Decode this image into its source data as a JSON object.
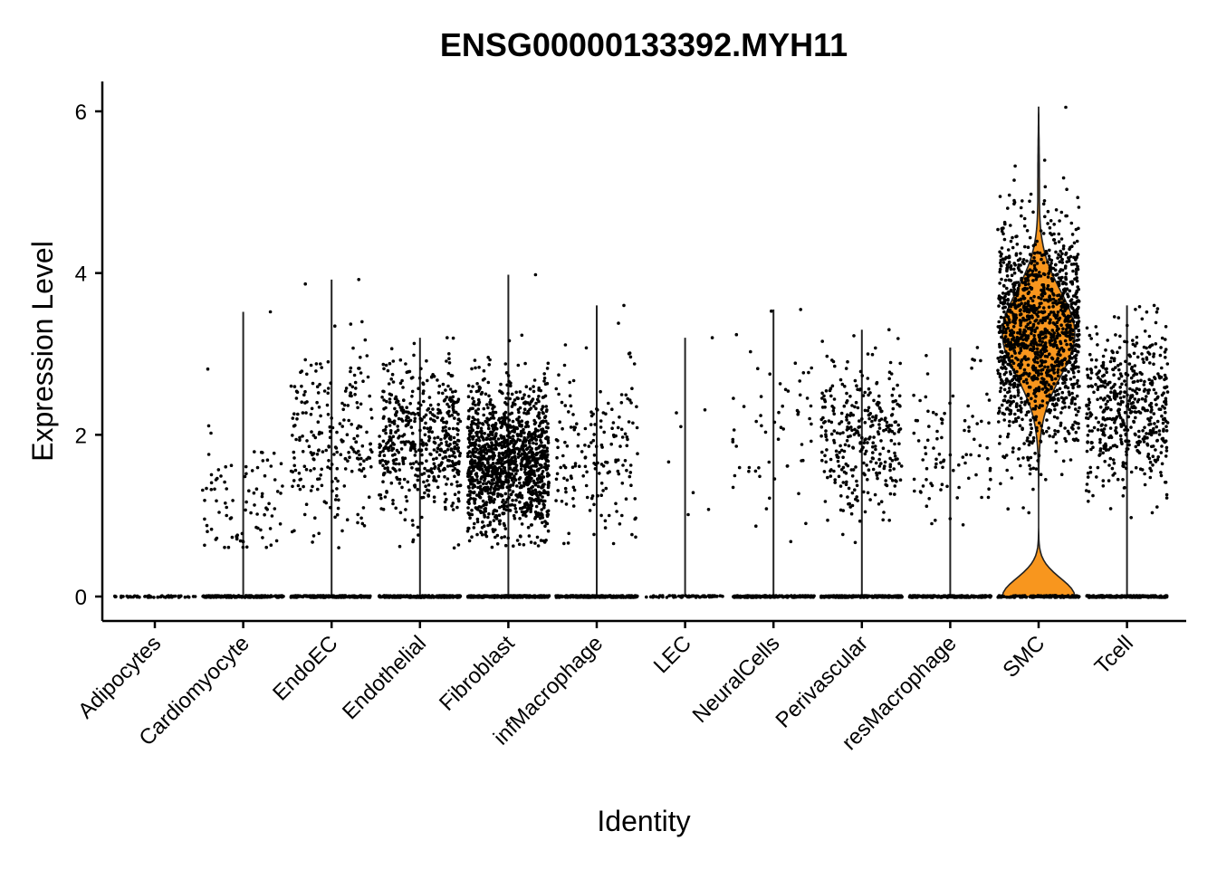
{
  "chart_data": {
    "type": "violin",
    "title": "ENSG00000133392.MYH11",
    "xlabel": "Identity",
    "ylabel": "Expression Level",
    "ylim": [
      -0.3,
      6.35
    ],
    "yticks": [
      0,
      2,
      4,
      6
    ],
    "ytick_labels": [
      "0",
      "2",
      "4",
      "6"
    ],
    "grid": false,
    "legend": "none",
    "highlight_color": "#F8961E",
    "point_color": "#000000",
    "categories": [
      "Adipocytes",
      "Cardiomyocyte",
      "EndoEC",
      "Endothelial",
      "Fibroblast",
      "infMacrophage",
      "LEC",
      "NeuralCells",
      "Perivascular",
      "resMacrophage",
      "SMC",
      "Tcell"
    ],
    "groups": [
      {
        "name": "Adipocytes",
        "max": 0.0,
        "n_zero": 60,
        "n_expr": 0,
        "expr_center": 0,
        "expr_spread": 0,
        "violin": false
      },
      {
        "name": "Cardiomyocyte",
        "max": 3.52,
        "n_zero": 200,
        "n_expr": 90,
        "expr_center": 1.1,
        "expr_spread": 0.45,
        "violin": false
      },
      {
        "name": "EndoEC",
        "max": 3.92,
        "n_zero": 220,
        "n_expr": 230,
        "expr_center": 1.9,
        "expr_spread": 0.6,
        "violin": false
      },
      {
        "name": "Endothelial",
        "max": 3.2,
        "n_zero": 260,
        "n_expr": 520,
        "expr_center": 1.95,
        "expr_spread": 0.45,
        "violin": false
      },
      {
        "name": "Fibroblast",
        "max": 3.98,
        "n_zero": 300,
        "n_expr": 1300,
        "expr_center": 1.7,
        "expr_spread": 0.45,
        "violin": false
      },
      {
        "name": "infMacrophage",
        "max": 3.6,
        "n_zero": 260,
        "n_expr": 170,
        "expr_center": 1.8,
        "expr_spread": 0.55,
        "violin": false
      },
      {
        "name": "LEC",
        "max": 3.2,
        "n_zero": 70,
        "n_expr": 7,
        "expr_center": 2.0,
        "expr_spread": 0.8,
        "violin": false
      },
      {
        "name": "NeuralCells",
        "max": 3.55,
        "n_zero": 220,
        "n_expr": 60,
        "expr_center": 2.1,
        "expr_spread": 0.55,
        "violin": false
      },
      {
        "name": "Perivascular",
        "max": 3.3,
        "n_zero": 260,
        "n_expr": 320,
        "expr_center": 1.95,
        "expr_spread": 0.5,
        "violin": false
      },
      {
        "name": "resMacrophage",
        "max": 3.08,
        "n_zero": 220,
        "n_expr": 90,
        "expr_center": 1.8,
        "expr_spread": 0.5,
        "violin": false
      },
      {
        "name": "SMC",
        "max": 6.05,
        "n_zero": 150,
        "n_expr": 1400,
        "expr_center": 3.2,
        "expr_spread": 0.7,
        "violin": true
      },
      {
        "name": "Tcell",
        "max": 3.6,
        "n_zero": 240,
        "n_expr": 520,
        "expr_center": 2.3,
        "expr_spread": 0.5,
        "violin": false
      }
    ]
  }
}
